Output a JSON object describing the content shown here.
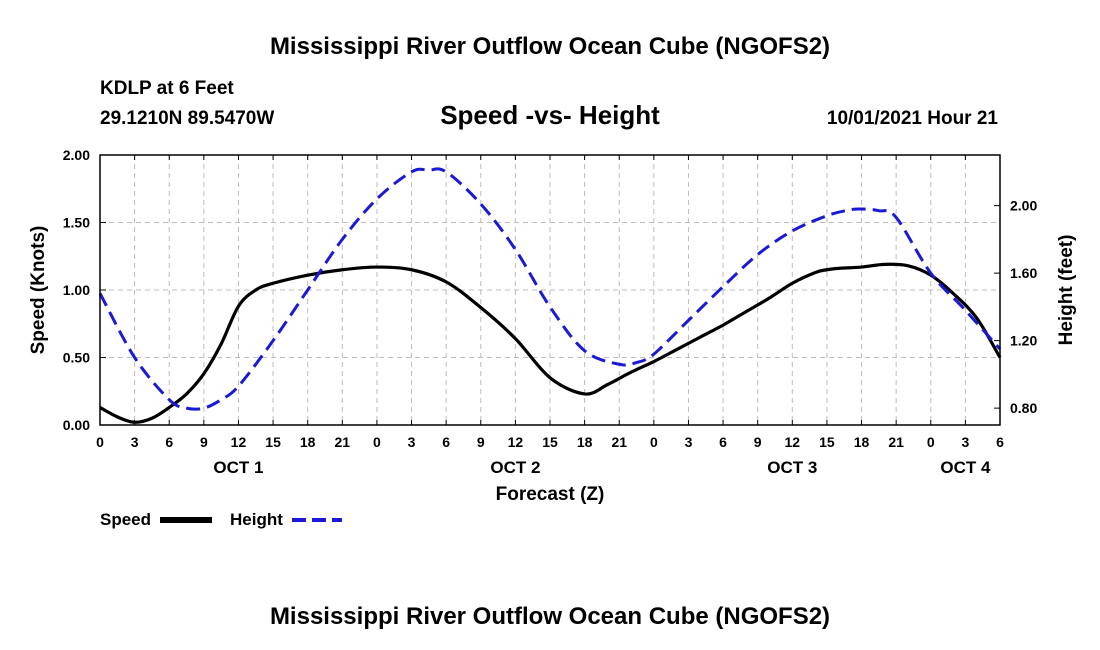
{
  "page": {
    "title_top": "Mississippi River Outflow Ocean Cube (NGOFS2)",
    "title_bottom": "Mississippi River Outflow Ocean Cube (NGOFS2)",
    "station": "KDLP at 6 Feet",
    "coords": "29.1210N  89.5470W",
    "datetime": "10/01/2021 Hour 21"
  },
  "chart_data": {
    "type": "line",
    "title": "Speed -vs- Height",
    "xlabel": "Forecast (Z)",
    "ylabel_left": "Speed (Knots)",
    "ylabel_right": "Height (feet)",
    "x_hours": [
      0,
      3,
      6,
      9,
      12,
      15,
      18,
      21,
      24,
      27,
      30,
      33,
      36,
      39,
      42,
      45,
      48,
      51,
      54,
      57,
      60,
      63,
      66,
      69,
      72,
      75,
      78
    ],
    "x_tick_labels": [
      "0",
      "3",
      "6",
      "9",
      "12",
      "15",
      "18",
      "21",
      "0",
      "3",
      "6",
      "9",
      "12",
      "15",
      "18",
      "21",
      "0",
      "3",
      "6",
      "9",
      "12",
      "15",
      "18",
      "21",
      "0",
      "3",
      "6"
    ],
    "date_labels": [
      {
        "label": "OCT 1",
        "hour": 12
      },
      {
        "label": "OCT 2",
        "hour": 36
      },
      {
        "label": "OCT 3",
        "hour": 60
      },
      {
        "label": "OCT 4",
        "hour": 75
      }
    ],
    "ylim_left": [
      0,
      2.0
    ],
    "yticks_left": [
      "0.00",
      "0.50",
      "1.00",
      "1.50",
      "2.00"
    ],
    "ylim_right": [
      0.7,
      2.3
    ],
    "yticks_right": [
      "0.80",
      "1.20",
      "1.60",
      "2.00"
    ],
    "grid": true,
    "series": [
      {
        "name": "Speed",
        "axis": "left",
        "color": "#000000",
        "style": "solid",
        "x": [
          0,
          1.5,
          3,
          4.5,
          6,
          7.5,
          9,
          10.5,
          12,
          13.5,
          15,
          18,
          21,
          24,
          27,
          30,
          33,
          36,
          39,
          42,
          44,
          46,
          48,
          50,
          52,
          54,
          56,
          58,
          60,
          62,
          63,
          64,
          66,
          68,
          70,
          72,
          74,
          76,
          78
        ],
        "values": [
          0.13,
          0.06,
          0.02,
          0.05,
          0.13,
          0.23,
          0.38,
          0.6,
          0.88,
          1.0,
          1.05,
          1.11,
          1.15,
          1.17,
          1.15,
          1.06,
          0.87,
          0.64,
          0.35,
          0.23,
          0.3,
          0.39,
          0.47,
          0.56,
          0.65,
          0.74,
          0.84,
          0.94,
          1.05,
          1.13,
          1.15,
          1.16,
          1.17,
          1.19,
          1.18,
          1.11,
          0.97,
          0.79,
          0.5
        ]
      },
      {
        "name": "Height",
        "axis": "right",
        "color": "#1a1ad6",
        "style": "dashed",
        "x": [
          0,
          3,
          6,
          7.5,
          9,
          10.5,
          12,
          15,
          18,
          21,
          24,
          27,
          28.5,
          30,
          33,
          36,
          39,
          42,
          45,
          46.5,
          48,
          51,
          54,
          57,
          60,
          63,
          65,
          66,
          67.5,
          69,
          72,
          75,
          78
        ],
        "values": [
          1.48,
          1.1,
          0.85,
          0.8,
          0.8,
          0.85,
          0.93,
          1.2,
          1.5,
          1.8,
          2.04,
          2.2,
          2.21,
          2.2,
          2.01,
          1.74,
          1.4,
          1.14,
          1.06,
          1.07,
          1.12,
          1.32,
          1.52,
          1.71,
          1.85,
          1.94,
          1.975,
          1.98,
          1.97,
          1.93,
          1.6,
          1.38,
          1.15
        ]
      }
    ]
  }
}
